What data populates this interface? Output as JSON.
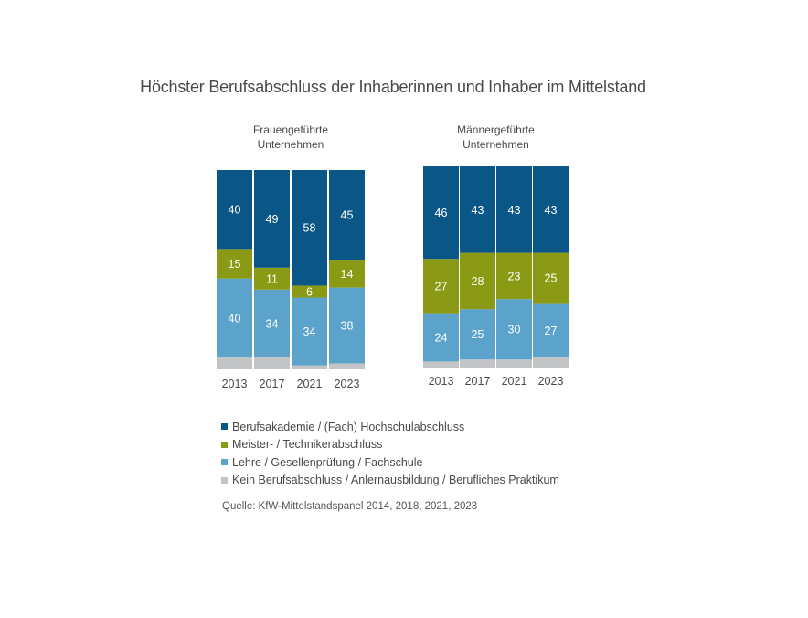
{
  "title": "Höchster Berufsabschluss der Inhaberinnen und Inhaber im Mittelstand",
  "source": "Quelle: KfW-Mittelstandspanel 2014, 2018, 2021, 2023",
  "colors": {
    "akademie": "#0a5687",
    "meister": "#8b9a14",
    "lehre": "#5ba3cb",
    "kein": "#c2c4c6"
  },
  "legend": [
    {
      "key": "akademie",
      "label": "Berufsakademie / (Fach) Hochschulabschluss"
    },
    {
      "key": "meister",
      "label": "Meister- / Technikerabschluss"
    },
    {
      "key": "lehre",
      "label": "Lehre / Gesellenprüfung / Fachschule"
    },
    {
      "key": "kein",
      "label": "Kein Berufsabschluss / Anlernausbildung / Berufliches Praktikum"
    }
  ],
  "chart_data": [
    {
      "type": "bar",
      "stacked": true,
      "title": "Frauengeführte Unternehmen",
      "title_lines": [
        "Frauengeführte",
        "Unternehmen"
      ],
      "categories": [
        "2013",
        "2017",
        "2021",
        "2023"
      ],
      "ylim": [
        0,
        100
      ],
      "series": [
        {
          "key": "kein",
          "name": "Kein Berufsabschluss / Anlernausbildung / Berufliches Praktikum",
          "values": [
            6,
            6,
            2,
            3
          ],
          "labeled": false
        },
        {
          "key": "lehre",
          "name": "Lehre / Gesellenprüfung / Fachschule",
          "values": [
            40,
            34,
            34,
            38
          ],
          "labeled": true
        },
        {
          "key": "meister",
          "name": "Meister- / Technikerabschluss",
          "values": [
            15,
            11,
            6,
            14
          ],
          "labeled": true
        },
        {
          "key": "akademie",
          "name": "Berufsakademie / (Fach) Hochschulabschluss",
          "values": [
            40,
            49,
            58,
            45
          ],
          "labeled": true
        }
      ]
    },
    {
      "type": "bar",
      "stacked": true,
      "title": "Männergeführte Unternehmen",
      "title_lines": [
        "Männergeführte",
        "Unternehmen"
      ],
      "categories": [
        "2013",
        "2017",
        "2021",
        "2023"
      ],
      "ylim": [
        0,
        100
      ],
      "series": [
        {
          "key": "kein",
          "name": "Kein Berufsabschluss / Anlernausbildung / Berufliches Praktikum",
          "values": [
            3,
            4,
            4,
            5
          ],
          "labeled": false
        },
        {
          "key": "lehre",
          "name": "Lehre / Gesellenprüfung / Fachschule",
          "values": [
            24,
            25,
            30,
            27
          ],
          "labeled": true
        },
        {
          "key": "meister",
          "name": "Meister- / Technikerabschluss",
          "values": [
            27,
            28,
            23,
            25
          ],
          "labeled": true
        },
        {
          "key": "akademie",
          "name": "Berufsakademie / (Fach) Hochschulabschluss",
          "values": [
            46,
            43,
            43,
            43
          ],
          "labeled": true
        }
      ]
    }
  ]
}
